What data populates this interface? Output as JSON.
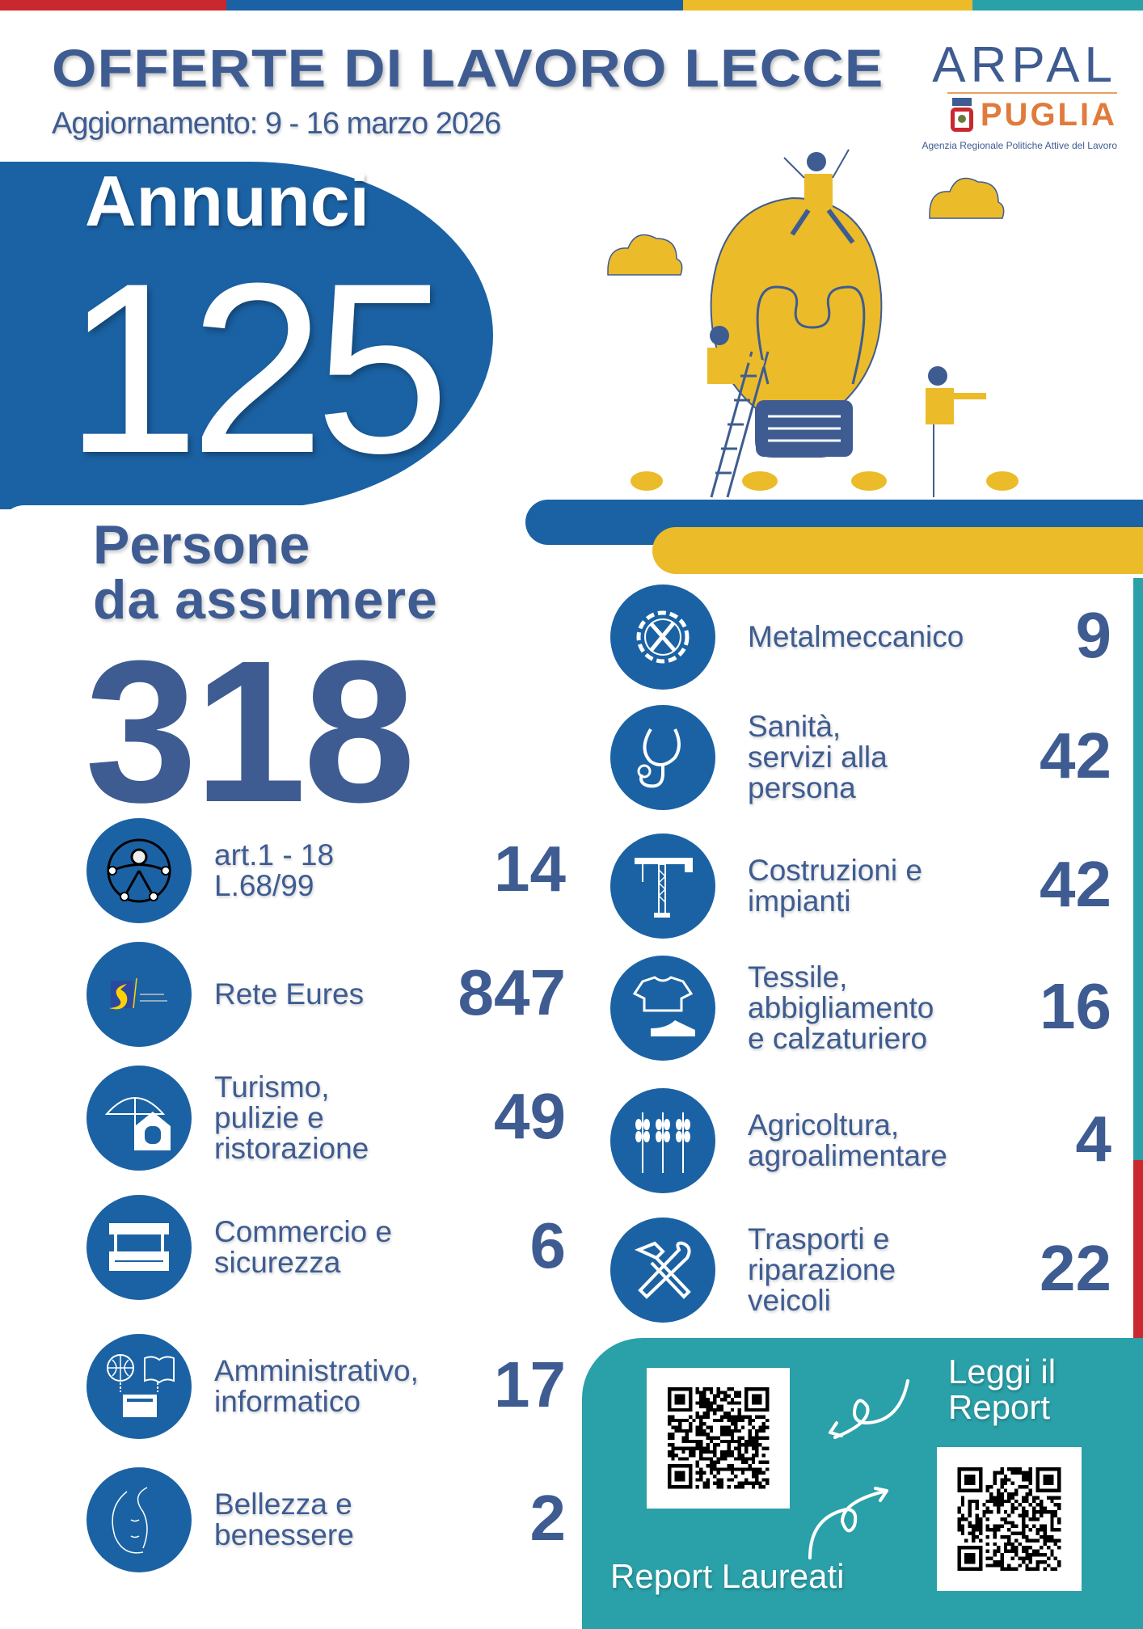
{
  "header": {
    "title": "OFFERTE DI LAVORO LECCE",
    "subtitle": "Aggiornamento: 9 - 16 marzo 2026"
  },
  "logo": {
    "line1": "ARPAL",
    "line2": "PUGLIA",
    "tagline": "Agenzia Regionale Politiche Attive del Lavoro"
  },
  "colors": {
    "blue": "#1b62a4",
    "text": "#3e5c91",
    "yellow": "#ebbb2a",
    "teal": "#2aa0a8",
    "red": "#c8282e",
    "orange": "#e07b3c"
  },
  "annunci": {
    "label": "Annunci",
    "value": "125"
  },
  "persone": {
    "label_line1": "Persone",
    "label_line2": "da assumere",
    "value": "318"
  },
  "left_items": [
    {
      "icon": "accessibility-icon",
      "label": "art.1 - 18\nL.68/99",
      "value": "14"
    },
    {
      "icon": "eures-logo-icon",
      "label": "Rete Eures",
      "value": "847",
      "logo_text": "EURES MOVING FORWARD"
    },
    {
      "icon": "umbrella-restaurant-icon",
      "label": "Turismo,\npulizie e\nristorazione",
      "value": "49"
    },
    {
      "icon": "market-stall-icon",
      "label": "Commercio e\nsicurezza",
      "value": "6"
    },
    {
      "icon": "globe-book-computer-icon",
      "label": "Amministrativo,\ninformatico",
      "value": "17"
    },
    {
      "icon": "face-icon",
      "label": "Bellezza e\nbenessere",
      "value": "2"
    }
  ],
  "right_items": [
    {
      "icon": "gear-wrench-icon",
      "label": "Metalmeccanico",
      "value": "9"
    },
    {
      "icon": "stethoscope-icon",
      "label": "Sanità,\nservizi alla\npersona",
      "value": "42"
    },
    {
      "icon": "crane-icon",
      "label": "Costruzioni e\nimpianti",
      "value": "42"
    },
    {
      "icon": "shirt-shoe-icon",
      "label": "Tessile,\nabbigliamento\ne calzaturiero",
      "value": "16"
    },
    {
      "icon": "wheat-icon",
      "label": "Agricoltura,\nagroalimentare",
      "value": "4"
    },
    {
      "icon": "tools-icon",
      "label": "Trasporti e\nriparazione\nveicoli",
      "value": "22"
    }
  ],
  "report": {
    "read_label": "Leggi il\nReport",
    "graduates_label": "Report Laureati"
  }
}
